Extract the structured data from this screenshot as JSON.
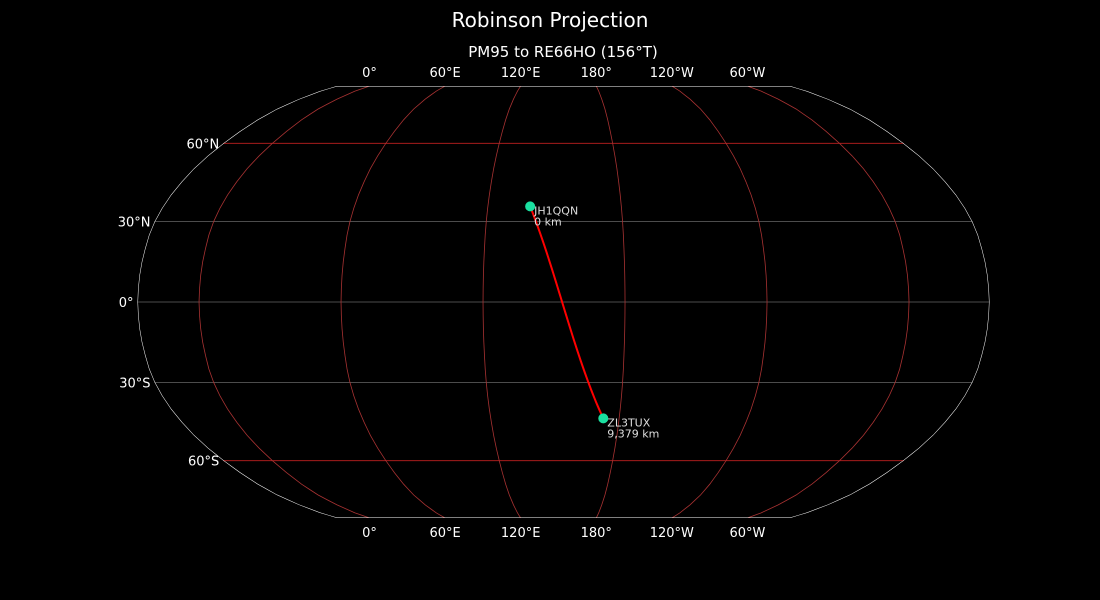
{
  "title": "Robinson Projection",
  "subtitle": "PM95 to RE66HO (156°T)",
  "map": {
    "projection": "robinson",
    "central_longitude": 154,
    "background": "#000000",
    "coastline_color": "#808080",
    "outline_color": "#ffffff",
    "meridian_color": "#a83232",
    "parallel_color_major": "#c02020",
    "parallel_color_minor": "#666666",
    "meridians": [
      0,
      60,
      120,
      180,
      -120,
      -60
    ],
    "parallels": [
      60,
      30,
      0,
      -30,
      -60
    ],
    "lon_labels": [
      "0°",
      "60°E",
      "120°E",
      "180°",
      "120°W",
      "60°W"
    ],
    "lat_labels": [
      "60°N",
      "30°N",
      "0°",
      "30°S",
      "60°S"
    ],
    "path_color": "#ff0000",
    "marker_color": "#1adfa0"
  },
  "stations": [
    {
      "call": "JH1QQN",
      "distance": "0 km",
      "lat": 35.7,
      "lon": 139.0
    },
    {
      "call": "ZL3TUX",
      "distance": "9,379 km",
      "lat": -43.5,
      "lon": 172.6
    }
  ]
}
